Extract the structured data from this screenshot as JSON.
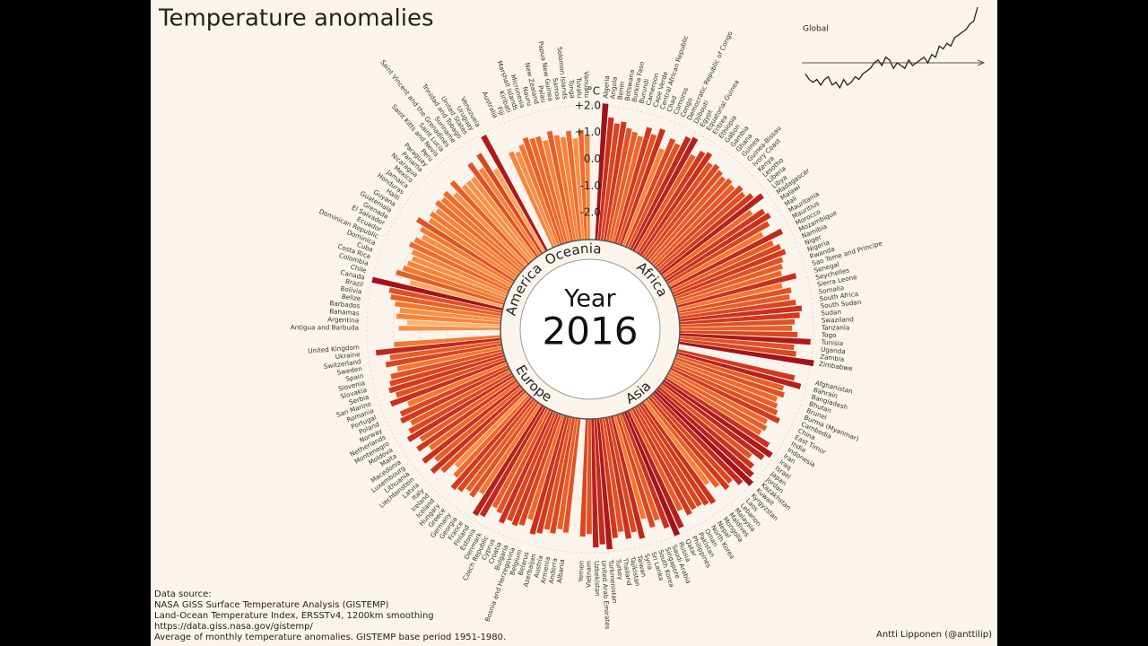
{
  "chart_data": [
    {
      "type": "radial_bar",
      "title": "Temperature anomalies",
      "y_label": "°C",
      "center_label": "Year",
      "center_value": "2016",
      "ylim": [
        -3,
        2.5
      ],
      "yticks": [
        {
          "value": -2,
          "label": "-2.0"
        },
        {
          "value": -1,
          "label": "-1.0"
        },
        {
          "value": 0,
          "label": "0.0"
        },
        {
          "value": 1,
          "label": "+1.0"
        },
        {
          "value": 2,
          "label": "+2.0"
        }
      ],
      "grid": true,
      "colorscale": {
        "domain": [
          0,
          2
        ],
        "colors": [
          "#fde5c4",
          "#fdb36b",
          "#f5772e",
          "#d4381c",
          "#a3121b"
        ]
      },
      "series": [
        {
          "name": "Africa",
          "categories": [
            "Algeria",
            "Angola",
            "Benin",
            "Botswana",
            "Burkina Faso",
            "Burundi",
            "Cameroon",
            "Cape Verde",
            "Central African Republic",
            "Chad",
            "Comoros",
            "Congo",
            "Democratic Republic of Congo",
            "Djibouti",
            "Egypt",
            "Equatorial Guinea",
            "Eritrea",
            "Ethiopia",
            "Gabon",
            "Gambia",
            "Ghana",
            "Guinea",
            "Guinea-Bissau",
            "Ivory Coast",
            "Kenya",
            "Lesotho",
            "Liberia",
            "Libya",
            "Madagascar",
            "Malawi",
            "Mali",
            "Mauritania",
            "Mauritius",
            "Morocco",
            "Mozambique",
            "Namibia",
            "Niger",
            "Nigeria",
            "Rwanda",
            "Sao Tome and Principe",
            "Senegal",
            "Seychelles",
            "Sierra Leone",
            "Somalia",
            "South Africa",
            "South Sudan",
            "Sudan",
            "Swaziland",
            "Tanzania",
            "Togo",
            "Tunisia",
            "Uganda",
            "Zambia",
            "Zimbabwe"
          ],
          "values": [
            2.1,
            1.6,
            1.4,
            1.5,
            1.3,
            1.2,
            1.1,
            1.5,
            1.3,
            1.6,
            0.9,
            1.4,
            1.3,
            1.7,
            1.8,
            1.2,
            1.5,
            1.6,
            1.3,
            1.4,
            1.3,
            1.2,
            1.3,
            1.2,
            1.4,
            1.3,
            1.5,
            1.8,
            1.1,
            1.5,
            1.6,
            1.4,
            1.0,
            1.7,
            1.2,
            1.4,
            1.5,
            1.3,
            1.2,
            1.1,
            1.6,
            1.0,
            1.3,
            1.2,
            1.4,
            1.6,
            1.5,
            1.3,
            1.2,
            1.4,
            1.9,
            1.3,
            1.4,
            2.1
          ]
        },
        {
          "name": "Asia",
          "categories": [
            "Afghanistan",
            "Bahrain",
            "Bangladesh",
            "Bhutan",
            "Brunei",
            "Burma (Myanmar)",
            "Cambodia",
            "China",
            "East Timor",
            "India",
            "Indonesia",
            "Iran",
            "Iraq",
            "Israel",
            "Japan",
            "Jordan",
            "Kazakhstan",
            "Kuwait",
            "Kyrgyzstan",
            "Laos",
            "Lebanon",
            "Malaysia",
            "Maldives",
            "Mongolia",
            "Nepal",
            "North Korea",
            "Oman",
            "Pakistan",
            "Philippines",
            "Qatar",
            "Russia",
            "Saudi Arabia",
            "Singapore",
            "South Korea",
            "Sri Lanka",
            "Syria",
            "Taiwan",
            "Tajikistan",
            "Thailand",
            "Turkey",
            "Turkmenistan",
            "United Arab Emirates",
            "Uzbekistan",
            "Vietnam",
            "Yemen"
          ],
          "values": [
            1.5,
            1.8,
            1.2,
            1.3,
            1.1,
            1.2,
            1.3,
            1.5,
            1.1,
            1.2,
            1.1,
            1.6,
            1.9,
            1.7,
            1.3,
            1.6,
            1.8,
            2.0,
            1.7,
            1.4,
            1.5,
            1.2,
            0.9,
            1.6,
            1.5,
            1.4,
            1.4,
            1.5,
            1.2,
            1.8,
            2.0,
            1.6,
            1.2,
            1.4,
            1.0,
            1.7,
            1.4,
            1.6,
            1.3,
            1.5,
            1.9,
            1.7,
            1.8,
            1.3,
            1.4
          ]
        },
        {
          "name": "Europe",
          "categories": [
            "Albania",
            "Andorra",
            "Armenia",
            "Austria",
            "Azerbaijan",
            "Belarus",
            "Belgium",
            "Bosnia and Herzegovina",
            "Bulgaria",
            "Croatia",
            "Cyprus",
            "Czech Republic",
            "Denmark",
            "Estonia",
            "Finland",
            "France",
            "Georgia",
            "Germany",
            "Greece",
            "Hungary",
            "Iceland",
            "Ireland",
            "Italy",
            "Latvia",
            "Liechtenstein",
            "Lithuania",
            "Luxembourg",
            "Macedonia",
            "Malta",
            "Moldova",
            "Montenegro",
            "Netherlands",
            "Norway",
            "Poland",
            "Portugal",
            "Romania",
            "San Marino",
            "Serbia",
            "Slovakia",
            "Slovenia",
            "Spain",
            "Sweden",
            "Switzerland",
            "Ukraine",
            "United Kingdom"
          ],
          "values": [
            1.3,
            1.2,
            1.4,
            1.3,
            1.5,
            1.6,
            1.1,
            1.4,
            1.5,
            1.4,
            1.6,
            1.3,
            1.2,
            1.7,
            1.8,
            1.0,
            1.3,
            1.2,
            1.4,
            1.5,
            1.1,
            0.8,
            1.3,
            1.6,
            1.2,
            1.6,
            1.1,
            1.5,
            1.2,
            1.6,
            1.4,
            1.2,
            1.5,
            1.4,
            1.0,
            1.6,
            1.3,
            1.5,
            1.4,
            1.3,
            1.0,
            1.4,
            1.2,
            1.7,
            1.0
          ]
        },
        {
          "name": "America",
          "categories": [
            "Antigua and Barbuda",
            "Argentina",
            "Bahamas",
            "Barbados",
            "Belize",
            "Bolivia",
            "Brazil",
            "Canada",
            "Chile",
            "Colombia",
            "Costa Rica",
            "Cuba",
            "Dominica",
            "Dominican Republic",
            "Ecuador",
            "El Salvador",
            "Grenada",
            "Guatemala",
            "Guyana",
            "Haiti",
            "Honduras",
            "Jamaica",
            "Mexico",
            "Nicaragua",
            "Panama",
            "Paraguay",
            "Peru",
            "Saint Kitts and Nevis",
            "Saint Lucia",
            "Saint Vincent and the Grenadines",
            "Suriname",
            "Trinidad and Tobago",
            "United States",
            "Uruguay",
            "Venezuela"
          ],
          "values": [
            0.8,
            0.5,
            0.9,
            0.8,
            1.0,
            1.2,
            1.3,
            2.0,
            0.6,
            1.2,
            1.0,
            0.9,
            0.8,
            0.9,
            1.1,
            1.0,
            0.8,
            1.0,
            1.3,
            0.9,
            1.0,
            0.9,
            1.1,
            1.0,
            1.1,
            0.8,
            1.2,
            0.8,
            0.8,
            0.8,
            1.3,
            0.9,
            1.4,
            0.6,
            1.9
          ]
        },
        {
          "name": "Oceania",
          "categories": [
            "Australia",
            "Fiji",
            "Kiribati",
            "Marshall Islands",
            "Micronesia",
            "Nauru",
            "New Zealand",
            "Palau",
            "Papua New Guinea",
            "Samoa",
            "Solomon Islands",
            "Tonga",
            "Tuvalu",
            "Vanuatu"
          ],
          "values": [
            0.9,
            0.8,
            1.0,
            1.2,
            1.1,
            1.1,
            0.9,
            1.2,
            1.0,
            0.9,
            1.1,
            0.8,
            1.1,
            0.9
          ]
        }
      ],
      "notes": [
        "Data source:",
        "NASA GISS Surface Temperature Analysis (GISTEMP)",
        "Land-Ocean Temperature Index, ERSSTv4, 1200km smoothing",
        "https://data.giss.nasa.gov/gistemp/",
        "Average of monthly temperature anomalies. GISTEMP base period 1951-1980."
      ],
      "credit": "Antti Lipponen (@anttilip)"
    },
    {
      "type": "line",
      "title": "Global",
      "color": "#222",
      "ylim": [
        -0.5,
        1.0
      ],
      "values": [
        -0.2,
        -0.3,
        -0.35,
        -0.3,
        -0.4,
        -0.3,
        -0.25,
        -0.4,
        -0.35,
        -0.45,
        -0.3,
        -0.4,
        -0.35,
        -0.25,
        -0.3,
        -0.2,
        -0.15,
        -0.1,
        0,
        0.05,
        -0.05,
        0.1,
        0.05,
        -0.1,
        0.0,
        -0.05,
        -0.1,
        0.05,
        -0.05,
        0.0,
        0.05,
        0.1,
        0.0,
        0.15,
        0.1,
        0.3,
        0.25,
        0.35,
        0.3,
        0.45,
        0.5,
        0.55,
        0.6,
        0.7,
        0.75,
        1.0
      ]
    }
  ]
}
